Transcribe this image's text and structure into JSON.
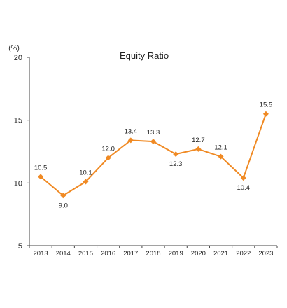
{
  "chart_data": {
    "type": "line",
    "title": "Equity Ratio",
    "y_unit": "(%)",
    "categories": [
      "2013",
      "2014",
      "2015",
      "2016",
      "2017",
      "2018",
      "2019",
      "2020",
      "2021",
      "2022",
      "2023"
    ],
    "series": [
      {
        "values": [
          10.5,
          9.0,
          10.1,
          12.0,
          13.4,
          13.3,
          12.3,
          12.7,
          12.1,
          10.4,
          15.5
        ],
        "data_labels": [
          "10.5",
          "9.0",
          "10.1",
          "12.0",
          "13.4",
          "13.3",
          "12.3",
          "12.7",
          "12.1",
          "10.4",
          "15.5"
        ],
        "label_positions": [
          "above",
          "below",
          "above",
          "above",
          "above",
          "above",
          "below",
          "above",
          "above",
          "below",
          "above"
        ],
        "color": "#F08A24"
      }
    ],
    "ylim": [
      5,
      20
    ],
    "y_ticks": [
      "5",
      "10",
      "15",
      "20"
    ],
    "grid": false,
    "marker": "diamond"
  }
}
